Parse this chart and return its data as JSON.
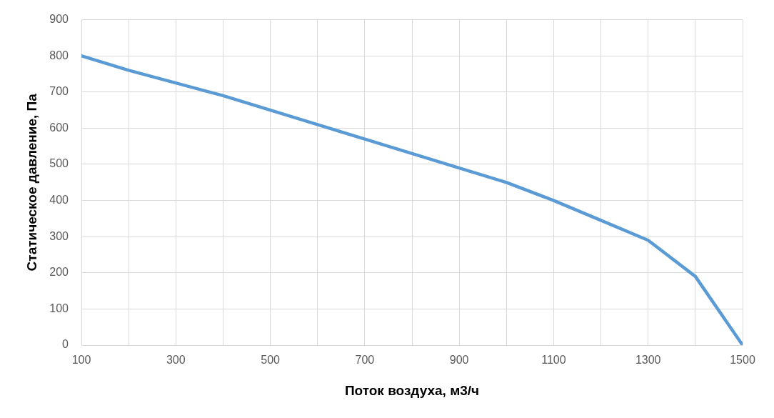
{
  "chart_data": {
    "type": "line",
    "xlabel": "Поток воздуха, м3/ч",
    "ylabel": "Статическое давление, Па",
    "x": [
      100,
      200,
      300,
      400,
      500,
      600,
      700,
      800,
      900,
      1000,
      1100,
      1200,
      1300,
      1400,
      1500
    ],
    "series": [
      {
        "color": "#5b9bd5",
        "values": [
          800,
          760,
          725,
          690,
          650,
          610,
          570,
          530,
          490,
          450,
          400,
          345,
          290,
          190,
          0
        ]
      }
    ],
    "xlim": [
      100,
      1500
    ],
    "xticks": [
      100,
      {
        "value": 200,
        "label": null
      },
      300,
      {
        "value": 400,
        "label": null
      },
      500,
      {
        "value": 600,
        "label": null
      },
      700,
      {
        "value": 800,
        "label": null
      },
      900,
      {
        "value": 1000,
        "label": null
      },
      1100,
      {
        "value": 1200,
        "label": null
      },
      1300,
      {
        "value": 1400,
        "label": null
      },
      1500
    ],
    "ylim": [
      0,
      900
    ],
    "yticks": [
      0,
      100,
      200,
      300,
      400,
      500,
      600,
      700,
      800,
      900
    ],
    "grid": true,
    "legend": false,
    "marker": "none",
    "line_style": "solid"
  }
}
